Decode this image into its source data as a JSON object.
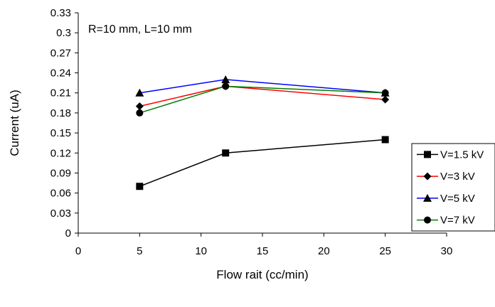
{
  "chart_data": {
    "type": "line",
    "xlabel": "Flow rait (cc/min)",
    "ylabel": "Current (uA)",
    "annotation": "R=10 mm, L=10 mm",
    "xlim": [
      0,
      30
    ],
    "ylim": [
      0,
      0.33
    ],
    "x_ticks": [
      "0",
      "5",
      "10",
      "15",
      "20",
      "25",
      "30"
    ],
    "y_ticks": [
      "0",
      "0.03",
      "0.06",
      "0.09",
      "0.12",
      "0.15",
      "0.18",
      "0.21",
      "0.24",
      "0.27",
      "0.3",
      "0.33"
    ],
    "grid": false,
    "legend_position": "right",
    "x": [
      5,
      12,
      25
    ],
    "series": [
      {
        "name": "V=1.5 kV",
        "color": "#000000",
        "marker": "square",
        "values": [
          0.07,
          0.12,
          0.14
        ]
      },
      {
        "name": "V=3 kV",
        "color": "#ff0000",
        "marker": "diamond",
        "values": [
          0.19,
          0.22,
          0.2
        ]
      },
      {
        "name": "V=5 kV",
        "color": "#0000ff",
        "marker": "triangle",
        "values": [
          0.21,
          0.23,
          0.21
        ]
      },
      {
        "name": "V=7 kV",
        "color": "#008000",
        "marker": "circle",
        "values": [
          0.18,
          0.22,
          0.21
        ]
      }
    ]
  }
}
